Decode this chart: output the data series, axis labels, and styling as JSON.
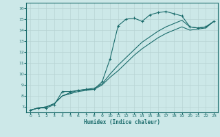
{
  "xlabel": "Humidex (Indice chaleur)",
  "bg_color": "#cce8e8",
  "line_color": "#1a6b6b",
  "grid_color": "#b8d4d4",
  "xlim": [
    -0.5,
    23.5
  ],
  "ylim": [
    6.5,
    16.5
  ],
  "xticks": [
    0,
    1,
    2,
    3,
    4,
    5,
    6,
    7,
    8,
    9,
    10,
    11,
    12,
    13,
    14,
    15,
    16,
    17,
    18,
    19,
    20,
    21,
    22,
    23
  ],
  "yticks": [
    7,
    8,
    9,
    10,
    11,
    12,
    13,
    14,
    15,
    16
  ],
  "series1_x": [
    0,
    1,
    2,
    3,
    4,
    5,
    6,
    7,
    8,
    9,
    10,
    11,
    12,
    13,
    14,
    15,
    16,
    17,
    18,
    19,
    20,
    21,
    22,
    23
  ],
  "series1_y": [
    6.7,
    6.9,
    6.9,
    7.2,
    8.4,
    8.4,
    8.5,
    8.6,
    8.6,
    9.3,
    11.4,
    14.4,
    15.0,
    15.1,
    14.8,
    15.4,
    15.6,
    15.7,
    15.5,
    15.3,
    14.3,
    14.2,
    14.3,
    14.8
  ],
  "series2_x": [
    0,
    1,
    2,
    3,
    4,
    5,
    6,
    7,
    8,
    9,
    10,
    11,
    12,
    13,
    14,
    15,
    16,
    17,
    18,
    19,
    20,
    21,
    22,
    23
  ],
  "series2_y": [
    6.7,
    6.9,
    7.0,
    7.3,
    8.0,
    8.3,
    8.5,
    8.6,
    8.7,
    9.1,
    10.0,
    10.8,
    11.5,
    12.2,
    12.9,
    13.4,
    13.9,
    14.3,
    14.6,
    14.9,
    14.3,
    14.2,
    14.3,
    14.8
  ],
  "series3_x": [
    0,
    1,
    2,
    3,
    4,
    5,
    6,
    7,
    8,
    9,
    10,
    11,
    12,
    13,
    14,
    15,
    16,
    17,
    18,
    19,
    20,
    21,
    22,
    23
  ],
  "series3_y": [
    6.7,
    6.9,
    7.0,
    7.3,
    8.0,
    8.2,
    8.4,
    8.5,
    8.6,
    9.0,
    9.7,
    10.3,
    11.0,
    11.7,
    12.3,
    12.8,
    13.3,
    13.7,
    14.0,
    14.3,
    14.0,
    14.1,
    14.2,
    14.8
  ]
}
